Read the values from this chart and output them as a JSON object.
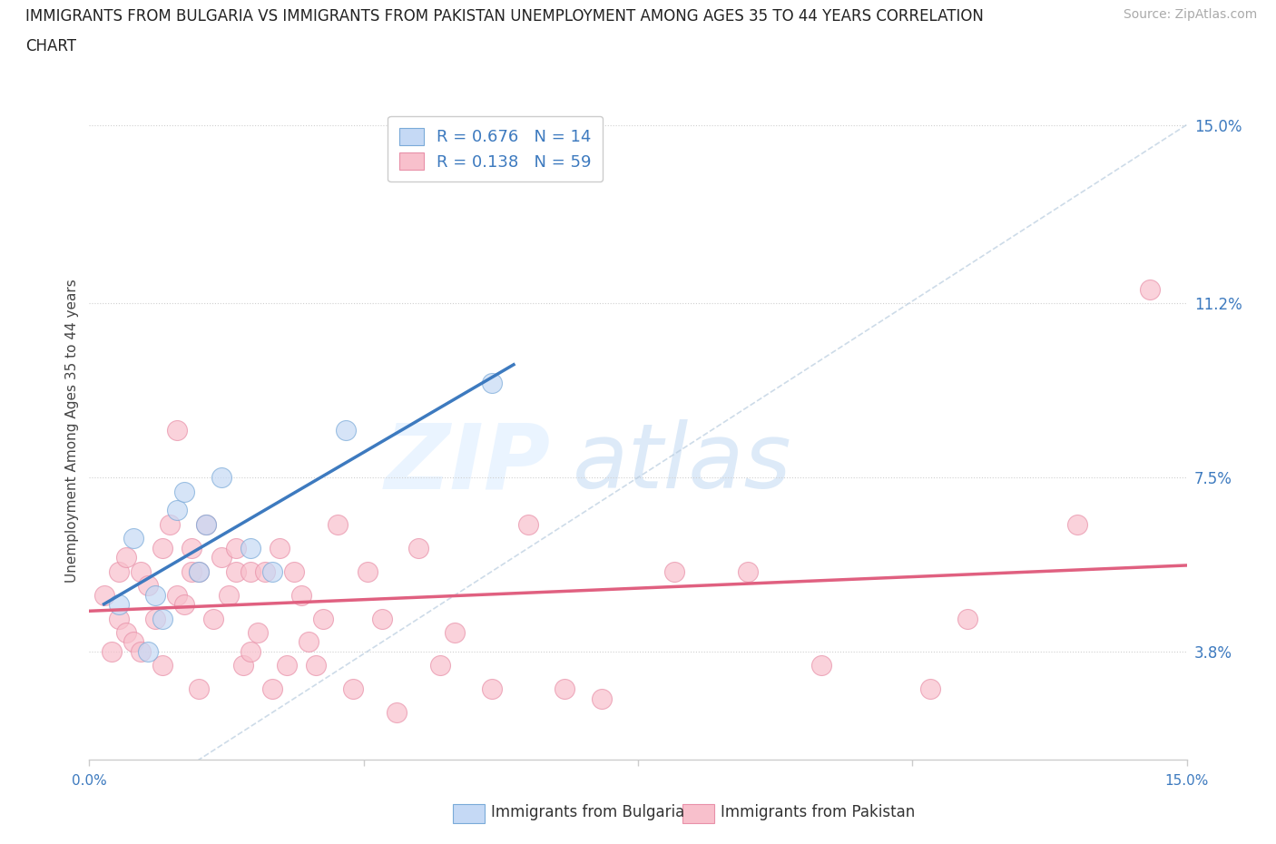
{
  "title_line1": "IMMIGRANTS FROM BULGARIA VS IMMIGRANTS FROM PAKISTAN UNEMPLOYMENT AMONG AGES 35 TO 44 YEARS CORRELATION",
  "title_line2": "CHART",
  "source": "Source: ZipAtlas.com",
  "ylabel": "Unemployment Among Ages 35 to 44 years",
  "ytick_values": [
    3.8,
    7.5,
    11.2,
    15.0
  ],
  "xmin": 0.0,
  "xmax": 15.0,
  "ymin": 1.5,
  "ymax": 15.5,
  "bulgaria_fill_color": "#c5d9f5",
  "bulgaria_edge_color": "#7aaad8",
  "pakistan_fill_color": "#f8c0cc",
  "pakistan_edge_color": "#e890a8",
  "bulgaria_line_color": "#3d7abf",
  "pakistan_line_color": "#e06080",
  "reference_line_color": "#b8ccdf",
  "R_bulgaria": 0.676,
  "N_bulgaria": 14,
  "R_pakistan": 0.138,
  "N_pakistan": 59,
  "legend_label_bulgaria": "Immigrants from Bulgaria",
  "legend_label_pakistan": "Immigrants from Pakistan",
  "bulgaria_x": [
    0.4,
    0.6,
    0.8,
    0.9,
    1.0,
    1.2,
    1.3,
    1.5,
    1.6,
    1.8,
    2.2,
    2.5,
    3.5,
    5.5
  ],
  "bulgaria_y": [
    4.8,
    6.2,
    3.8,
    5.0,
    4.5,
    6.8,
    7.2,
    5.5,
    6.5,
    7.5,
    6.0,
    5.5,
    8.5,
    9.5
  ],
  "pakistan_x": [
    0.2,
    0.3,
    0.4,
    0.4,
    0.5,
    0.5,
    0.6,
    0.7,
    0.7,
    0.8,
    0.9,
    1.0,
    1.0,
    1.1,
    1.2,
    1.2,
    1.3,
    1.4,
    1.4,
    1.5,
    1.5,
    1.6,
    1.7,
    1.8,
    1.9,
    2.0,
    2.0,
    2.1,
    2.2,
    2.2,
    2.3,
    2.4,
    2.5,
    2.6,
    2.7,
    2.8,
    2.9,
    3.0,
    3.1,
    3.2,
    3.4,
    3.6,
    3.8,
    4.0,
    4.2,
    4.5,
    4.8,
    5.0,
    5.5,
    6.0,
    6.5,
    7.0,
    8.0,
    9.0,
    10.0,
    11.5,
    12.0,
    13.5,
    14.5
  ],
  "pakistan_y": [
    5.0,
    3.8,
    5.5,
    4.5,
    4.2,
    5.8,
    4.0,
    5.5,
    3.8,
    5.2,
    4.5,
    6.0,
    3.5,
    6.5,
    5.0,
    8.5,
    4.8,
    5.5,
    6.0,
    5.5,
    3.0,
    6.5,
    4.5,
    5.8,
    5.0,
    6.0,
    5.5,
    3.5,
    5.5,
    3.8,
    4.2,
    5.5,
    3.0,
    6.0,
    3.5,
    5.5,
    5.0,
    4.0,
    3.5,
    4.5,
    6.5,
    3.0,
    5.5,
    4.5,
    2.5,
    6.0,
    3.5,
    4.2,
    3.0,
    6.5,
    3.0,
    2.8,
    5.5,
    5.5,
    3.5,
    3.0,
    4.5,
    6.5,
    11.5
  ]
}
